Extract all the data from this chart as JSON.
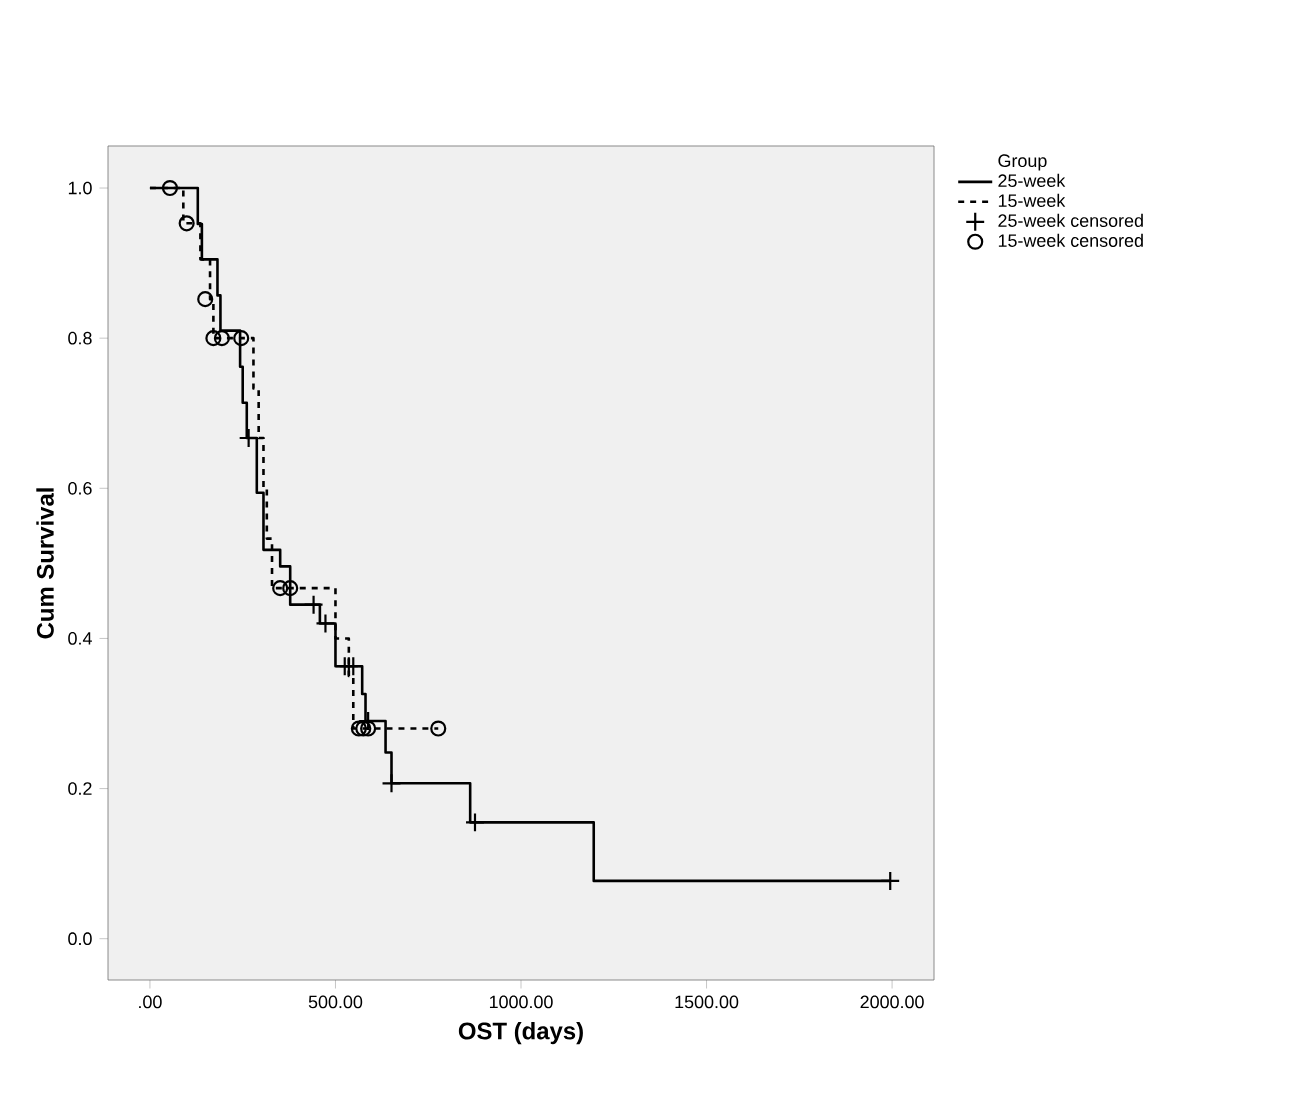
{
  "chart_data": {
    "type": "step",
    "xlabel": "OST (days)",
    "ylabel": "Cum Survival",
    "legend_title": "Group",
    "legend": "right",
    "xlim": [
      -113,
      2113
    ],
    "ylim": [
      -0.055,
      1.056
    ],
    "xticks": [
      {
        "value": 0,
        "label": ".00"
      },
      {
        "value": 500,
        "label": "500.00"
      },
      {
        "value": 1000,
        "label": "1000.00"
      },
      {
        "value": 1500,
        "label": "1500.00"
      },
      {
        "value": 2000,
        "label": "2000.00"
      }
    ],
    "yticks": [
      {
        "value": 0,
        "label": "0.0"
      },
      {
        "value": 0.2,
        "label": "0.2"
      },
      {
        "value": 0.4,
        "label": "0.4"
      },
      {
        "value": 0.6,
        "label": "0.6"
      },
      {
        "value": 0.8,
        "label": "0.8"
      },
      {
        "value": 1,
        "label": "1.0"
      }
    ],
    "series": [
      {
        "name": "25-week",
        "color": "#000000",
        "line_style": "solid",
        "marker": "none",
        "x": [
          0,
          129,
          140,
          182,
          190,
          243,
          250,
          261,
          288,
          306,
          351,
          378,
          458,
          500,
          572,
          581,
          635,
          651,
          863,
          1196,
          1995
        ],
        "values": [
          1,
          0.952,
          0.905,
          0.857,
          0.81,
          0.762,
          0.714,
          0.667,
          0.594,
          0.518,
          0.496,
          0.445,
          0.42,
          0.363,
          0.326,
          0.29,
          0.248,
          0.207,
          0.155,
          0.077,
          0.077
        ]
      },
      {
        "name": "15-week",
        "color": "#000000",
        "line_style": "dashed",
        "marker": "none",
        "x": [
          0,
          90,
          136,
          162,
          171,
          279,
          293,
          306,
          315,
          329,
          500,
          536,
          548,
          777
        ],
        "values": [
          1,
          0.953,
          0.905,
          0.852,
          0.8,
          0.733,
          0.667,
          0.6,
          0.533,
          0.467,
          0.4,
          0.35,
          0.28,
          0.28
        ]
      },
      {
        "name": "25-week censored",
        "type": "scatter",
        "color": "#000000",
        "marker": "cross",
        "x": [
          266,
          441,
          473,
          525,
          536,
          548,
          588,
          651,
          876,
          1995
        ],
        "values": [
          0.667,
          0.445,
          0.42,
          0.363,
          0.363,
          0.363,
          0.29,
          0.207,
          0.155,
          0.077
        ]
      },
      {
        "name": "15-week censored",
        "type": "scatter",
        "color": "#000000",
        "marker": "circle",
        "x": [
          54,
          99,
          149,
          171,
          194,
          246,
          351,
          378,
          563,
          575,
          588,
          777
        ],
        "values": [
          1,
          0.953,
          0.852,
          0.8,
          0.8,
          0.8,
          0.467,
          0.467,
          0.28,
          0.28,
          0.28,
          0.28
        ]
      }
    ]
  }
}
